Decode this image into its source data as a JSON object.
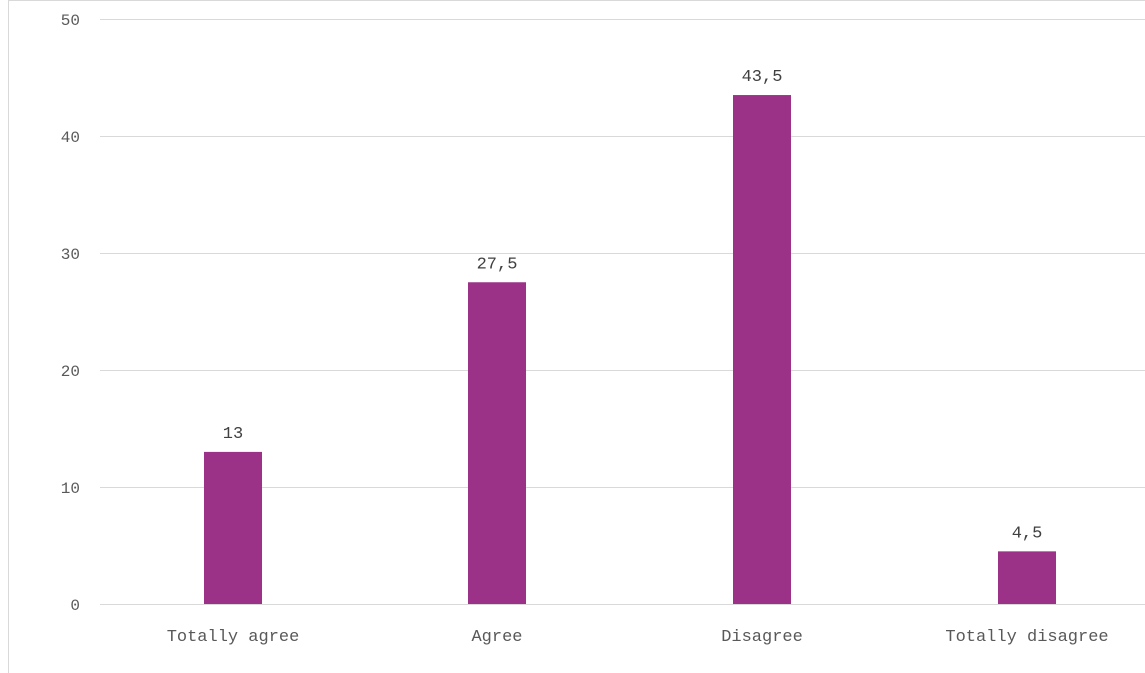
{
  "chart_data": {
    "type": "bar",
    "categories": [
      "Totally agree",
      "Agree",
      "Disagree",
      "Totally disagree"
    ],
    "values": [
      13,
      27.5,
      43.5,
      4.5
    ],
    "value_labels": [
      "13",
      "27,5",
      "43,5",
      "4,5"
    ],
    "ylim": [
      0,
      50
    ],
    "yticks": [
      0,
      10,
      20,
      30,
      40,
      50
    ],
    "grid": true,
    "legend": "none",
    "bar_color": "#9b3288"
  }
}
